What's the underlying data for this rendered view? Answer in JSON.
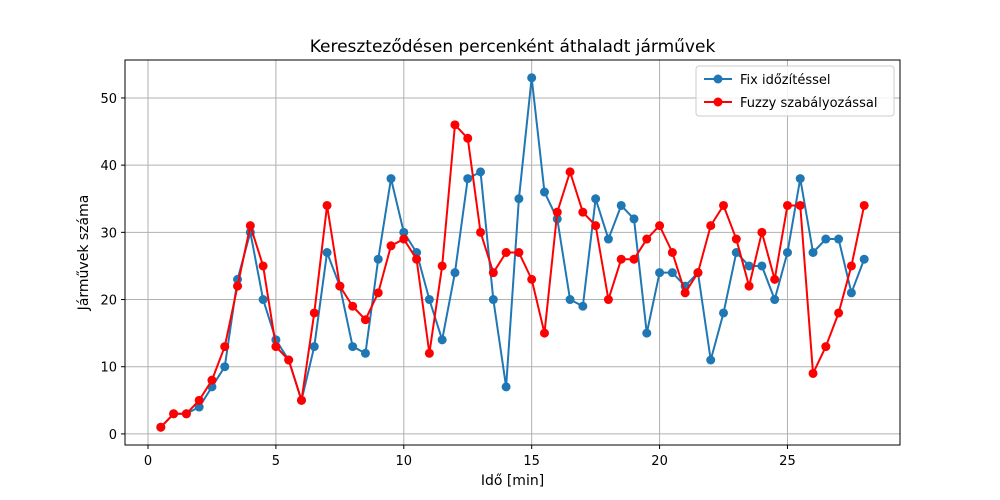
{
  "chart_data": {
    "type": "line",
    "title": "Kereszteződésen percenként áthaladt járművek",
    "xlabel": "Idő [min]",
    "ylabel": "Járművek száma",
    "xlim": [
      -0.9,
      29.4
    ],
    "ylim": [
      -1.65,
      55.65
    ],
    "xticks": [
      0,
      5,
      10,
      15,
      20,
      25
    ],
    "yticks": [
      0,
      10,
      20,
      30,
      40,
      50
    ],
    "grid": true,
    "legend_position": "top-right",
    "x": [
      0.5,
      1.0,
      1.5,
      2.0,
      2.5,
      3.0,
      3.5,
      4.0,
      4.5,
      5.0,
      5.5,
      6.0,
      6.5,
      7.0,
      7.5,
      8.0,
      8.5,
      9.0,
      9.5,
      10.0,
      10.5,
      11.0,
      11.5,
      12.0,
      12.5,
      13.0,
      13.5,
      14.0,
      14.5,
      15.0,
      15.5,
      16.0,
      16.5,
      17.0,
      17.5,
      18.0,
      18.5,
      19.0,
      19.5,
      20.0,
      20.5,
      21.0,
      21.5,
      22.0,
      22.5,
      23.0,
      23.5,
      24.0,
      24.5,
      25.0,
      25.5,
      26.0,
      26.5,
      27.0,
      27.5,
      28.0
    ],
    "series": [
      {
        "name": "Fix időzítéssel",
        "color": "#1f77b4",
        "values": [
          1,
          3,
          3,
          4,
          7,
          10,
          23,
          30,
          20,
          14,
          11,
          5,
          13,
          27,
          22,
          13,
          12,
          26,
          38,
          30,
          27,
          20,
          14,
          24,
          38,
          39,
          20,
          7,
          35,
          53,
          36,
          32,
          20,
          19,
          35,
          29,
          34,
          32,
          15,
          24,
          24,
          22,
          24,
          11,
          18,
          27,
          25,
          25,
          20,
          27,
          38,
          27,
          29,
          29,
          21,
          26
        ]
      },
      {
        "name": "Fuzzy szabályozással",
        "color": "#ff0000",
        "values": [
          1,
          3,
          3,
          5,
          8,
          13,
          22,
          31,
          25,
          13,
          11,
          5,
          18,
          34,
          22,
          19,
          17,
          21,
          28,
          29,
          26,
          12,
          25,
          46,
          44,
          30,
          24,
          27,
          27,
          23,
          15,
          33,
          39,
          33,
          31,
          20,
          26,
          26,
          29,
          31,
          27,
          21,
          24,
          31,
          34,
          29,
          22,
          30,
          23,
          34,
          34,
          9,
          13,
          18,
          25,
          34
        ]
      }
    ]
  }
}
